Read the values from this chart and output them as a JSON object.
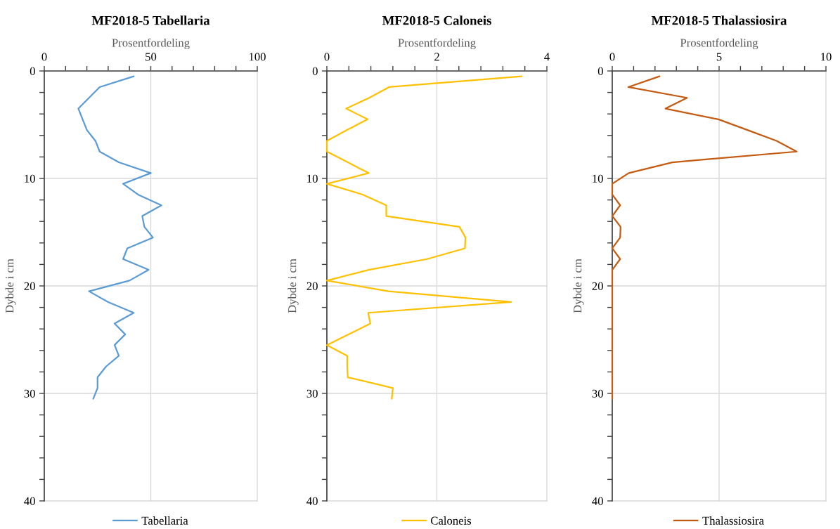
{
  "chart_data": [
    {
      "type": "line",
      "title": "MF2018-5 Tabellaria",
      "xlabel": "Prosentfordeling",
      "ylabel": "Dybde i cm",
      "xlim": [
        0,
        100
      ],
      "xticks": [
        0,
        {
          "value": 10,
          "label": null
        },
        {
          "value": 20,
          "label": null
        },
        {
          "value": 30,
          "label": null
        },
        {
          "value": 40,
          "label": null
        },
        50,
        {
          "value": 60,
          "label": null
        },
        {
          "value": 70,
          "label": null
        },
        {
          "value": 80,
          "label": null
        },
        {
          "value": 90,
          "label": null
        },
        100
      ],
      "ylim": [
        40,
        0
      ],
      "yticks": [
        0,
        {
          "value": 2,
          "label": null
        },
        {
          "value": 4,
          "label": null
        },
        {
          "value": 6,
          "label": null
        },
        {
          "value": 8,
          "label": null
        },
        10,
        {
          "value": 12,
          "label": null
        },
        {
          "value": 14,
          "label": null
        },
        {
          "value": 16,
          "label": null
        },
        {
          "value": 18,
          "label": null
        },
        20,
        {
          "value": 22,
          "label": null
        },
        {
          "value": 24,
          "label": null
        },
        {
          "value": 26,
          "label": null
        },
        {
          "value": 28,
          "label": null
        },
        30,
        {
          "value": 32,
          "label": null
        },
        {
          "value": 34,
          "label": null
        },
        {
          "value": 36,
          "label": null
        },
        {
          "value": 38,
          "label": null
        },
        40
      ],
      "grid": true,
      "legend": "bottom",
      "series": [
        {
          "name": "Tabellaria",
          "color": "#5b9bd5",
          "x": [
            42,
            26,
            21,
            16,
            18,
            20,
            24,
            26,
            35,
            50,
            37,
            44,
            55,
            46,
            47,
            51,
            39,
            37,
            49,
            40,
            21,
            30,
            42,
            33,
            38,
            33,
            35,
            29,
            25,
            25,
            23
          ],
          "values": [
            0.5,
            1.5,
            2.5,
            3.5,
            4.5,
            5.5,
            6.5,
            7.5,
            8.5,
            9.5,
            10.5,
            11.5,
            12.5,
            13.5,
            14.5,
            15.5,
            16.5,
            17.5,
            18.5,
            19.5,
            20.5,
            21.5,
            22.5,
            23.5,
            24.5,
            25.5,
            26.5,
            27.5,
            28.5,
            29.5,
            30.5
          ]
        }
      ]
    },
    {
      "type": "line",
      "title": "MF2018-5 Caloneis",
      "xlabel": "Prosentfordeling",
      "ylabel": "Dybde i cm",
      "xlim": [
        0,
        4
      ],
      "xticks": [
        0,
        {
          "value": 0.4,
          "label": null
        },
        {
          "value": 0.8,
          "label": null
        },
        {
          "value": 1.2,
          "label": null
        },
        {
          "value": 1.6,
          "label": null
        },
        2,
        {
          "value": 2.4,
          "label": null
        },
        {
          "value": 2.8,
          "label": null
        },
        {
          "value": 3.2,
          "label": null
        },
        {
          "value": 3.6,
          "label": null
        },
        4
      ],
      "ylim": [
        40,
        0
      ],
      "yticks": [
        0,
        {
          "value": 2,
          "label": null
        },
        {
          "value": 4,
          "label": null
        },
        {
          "value": 6,
          "label": null
        },
        {
          "value": 8,
          "label": null
        },
        10,
        {
          "value": 12,
          "label": null
        },
        {
          "value": 14,
          "label": null
        },
        {
          "value": 16,
          "label": null
        },
        {
          "value": 18,
          "label": null
        },
        20,
        {
          "value": 22,
          "label": null
        },
        {
          "value": 24,
          "label": null
        },
        {
          "value": 26,
          "label": null
        },
        {
          "value": 28,
          "label": null
        },
        30,
        {
          "value": 32,
          "label": null
        },
        {
          "value": 34,
          "label": null
        },
        {
          "value": 36,
          "label": null
        },
        {
          "value": 38,
          "label": null
        },
        40
      ],
      "grid": true,
      "legend": "bottom",
      "series": [
        {
          "name": "Caloneis",
          "color": "#ffc000",
          "x": [
            3.54,
            1.13,
            0.77,
            0.35,
            0.74,
            0.36,
            0,
            0,
            0.38,
            0.76,
            0,
            0.65,
            1.08,
            1.08,
            2.41,
            2.52,
            2.51,
            1.82,
            0.76,
            0,
            1.12,
            3.35,
            0.75,
            0.79,
            0.4,
            0,
            0.37,
            0.37,
            0.38,
            1.2,
            1.18
          ],
          "values": [
            0.5,
            1.5,
            2.5,
            3.5,
            4.5,
            5.5,
            6.5,
            7.5,
            8.5,
            9.5,
            10.5,
            11.5,
            12.5,
            13.5,
            14.5,
            15.5,
            16.5,
            17.5,
            18.5,
            19.5,
            20.5,
            21.5,
            22.5,
            23.5,
            24.5,
            25.5,
            26.5,
            27.5,
            28.5,
            29.5,
            30.5
          ]
        }
      ]
    },
    {
      "type": "line",
      "title": "MF2018-5 Thalassiosira",
      "xlabel": "Prosentfordeling",
      "ylabel": "Dybde i cm",
      "xlim": [
        0,
        10
      ],
      "xticks": [
        0,
        {
          "value": 1,
          "label": null
        },
        {
          "value": 2,
          "label": null
        },
        {
          "value": 3,
          "label": null
        },
        {
          "value": 4,
          "label": null
        },
        5,
        {
          "value": 6,
          "label": null
        },
        {
          "value": 7,
          "label": null
        },
        {
          "value": 8,
          "label": null
        },
        {
          "value": 9,
          "label": null
        },
        10
      ],
      "ylim": [
        40,
        0
      ],
      "yticks": [
        0,
        {
          "value": 2,
          "label": null
        },
        {
          "value": 4,
          "label": null
        },
        {
          "value": 6,
          "label": null
        },
        {
          "value": 8,
          "label": null
        },
        10,
        {
          "value": 12,
          "label": null
        },
        {
          "value": 14,
          "label": null
        },
        {
          "value": 16,
          "label": null
        },
        {
          "value": 18,
          "label": null
        },
        20,
        {
          "value": 22,
          "label": null
        },
        {
          "value": 24,
          "label": null
        },
        {
          "value": 26,
          "label": null
        },
        {
          "value": 28,
          "label": null
        },
        30,
        {
          "value": 32,
          "label": null
        },
        {
          "value": 34,
          "label": null
        },
        {
          "value": 36,
          "label": null
        },
        {
          "value": 38,
          "label": null
        },
        40
      ],
      "grid": true,
      "legend": "bottom",
      "series": [
        {
          "name": "Thalassiosira",
          "color": "#c55a11",
          "x": [
            2.21,
            0.75,
            3.5,
            2.49,
            4.97,
            6.33,
            7.69,
            8.63,
            2.81,
            0.77,
            0,
            0,
            0.37,
            0,
            0.39,
            0.37,
            0,
            0.37,
            0,
            0,
            0,
            0,
            0,
            0,
            0,
            0,
            0,
            0,
            0,
            0,
            0
          ],
          "values": [
            0.5,
            1.5,
            2.5,
            3.5,
            4.5,
            5.5,
            6.5,
            7.5,
            8.5,
            9.5,
            10.5,
            11.5,
            12.5,
            13.5,
            14.5,
            15.5,
            16.5,
            17.5,
            18.5,
            19.5,
            20.5,
            21.5,
            22.5,
            23.5,
            24.5,
            25.5,
            26.5,
            27.5,
            28.5,
            29.5,
            30.5
          ]
        }
      ]
    }
  ]
}
